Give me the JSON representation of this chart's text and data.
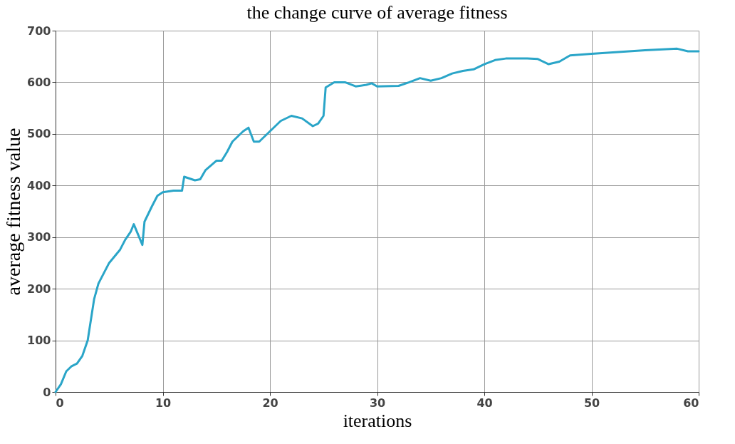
{
  "chart_data": {
    "type": "line",
    "title": "the change curve of average fitness",
    "xlabel": "iterations",
    "ylabel": "average fitness value",
    "x": [
      0,
      0.5,
      1,
      1.5,
      2,
      2.5,
      3,
      3.3,
      3.6,
      4,
      4.5,
      5,
      6,
      6.5,
      7,
      7.3,
      7.7,
      8.1,
      8.3,
      9,
      9.5,
      10,
      11,
      11.8,
      12,
      13,
      13.5,
      14,
      15,
      15.5,
      16,
      16.5,
      17.5,
      18,
      18.5,
      19,
      20,
      21,
      22,
      23,
      24,
      24.5,
      25,
      25.2,
      26,
      27,
      28,
      29,
      29.5,
      30,
      32,
      33,
      34,
      35,
      36,
      37,
      38,
      39,
      40,
      41,
      42,
      44,
      45,
      46,
      47,
      48,
      50,
      52,
      55,
      58,
      59,
      60
    ],
    "series": [
      {
        "color": "#2aa5c8",
        "values": [
          0,
          15,
          40,
          50,
          55,
          70,
          100,
          140,
          180,
          210,
          230,
          250,
          275,
          295,
          310,
          325,
          305,
          285,
          330,
          360,
          380,
          387,
          390,
          390,
          417,
          410,
          412,
          430,
          448,
          448,
          465,
          485,
          505,
          512,
          485,
          485,
          505,
          525,
          535,
          530,
          515,
          520,
          535,
          590,
          600,
          600,
          592,
          595,
          598,
          592,
          593,
          600,
          608,
          603,
          608,
          617,
          622,
          625,
          635,
          643,
          646,
          646,
          645,
          635,
          640,
          652,
          655,
          658,
          662,
          665,
          660,
          660
        ]
      }
    ],
    "xlim": [
      0,
      60
    ],
    "xticks": [
      0,
      10,
      20,
      30,
      40,
      50,
      60
    ],
    "ylim": [
      0,
      700
    ],
    "yticks": [
      0,
      100,
      200,
      300,
      400,
      500,
      600,
      700
    ],
    "grid": true,
    "line_style": "solid",
    "marker": "none"
  }
}
